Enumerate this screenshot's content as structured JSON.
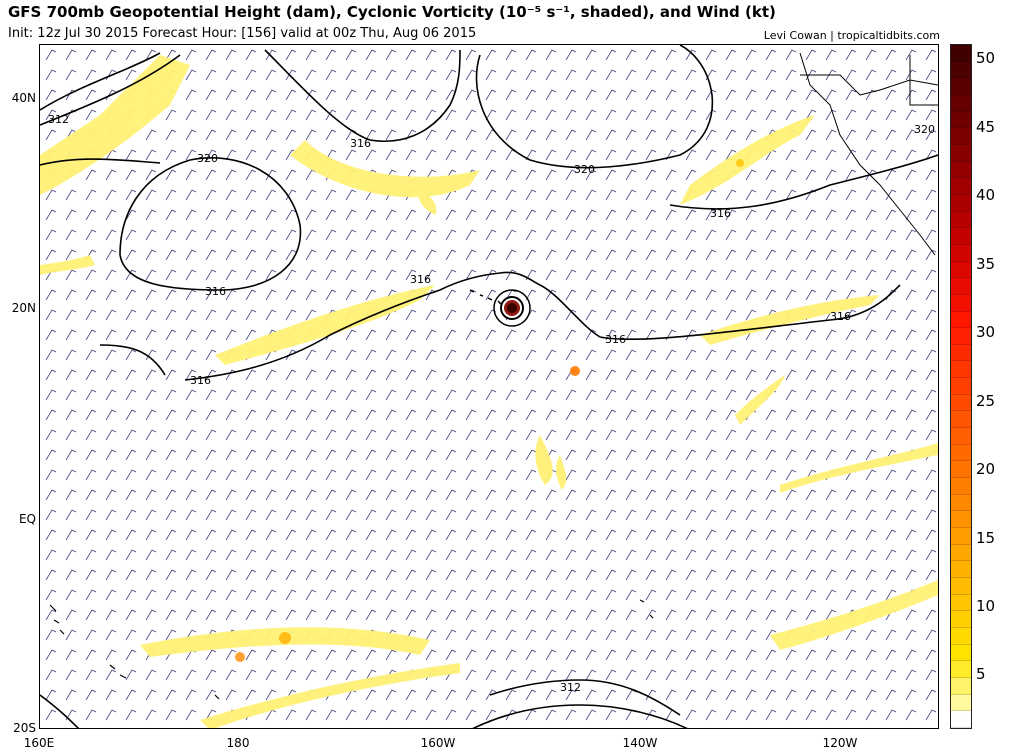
{
  "header": {
    "title": "GFS 700mb Geopotential Height (dam), Cyclonic Vorticity (10⁻⁵ s⁻¹, shaded), and Wind (kt)",
    "subtitle": "Init: 12z Jul 30 2015   Forecast Hour: [156]   valid at 00z Thu, Aug 06 2015",
    "credit": "Levi Cowan | tropicaltidbits.com"
  },
  "axes": {
    "y_labels": [
      "40N",
      "20N",
      "EQ",
      "20S"
    ],
    "x_labels": [
      "160E",
      "180",
      "160W",
      "140W",
      "120W"
    ]
  },
  "contour_labels": [
    "312",
    "316",
    "320",
    "316",
    "320",
    "316",
    "316",
    "316",
    "316",
    "316",
    "312",
    "320"
  ],
  "colorbar": {
    "labels": [
      "50",
      "45",
      "40",
      "35",
      "30",
      "25",
      "20",
      "15",
      "10",
      "5"
    ],
    "colors": [
      "#fefefe",
      "#fffaa0",
      "#fff36a",
      "#ffeb2a",
      "#ffe300",
      "#ffd900",
      "#ffcf00",
      "#ffc500",
      "#ffbb00",
      "#ffb100",
      "#ffa700",
      "#ff9c00",
      "#ff9200",
      "#ff8800",
      "#ff7e00",
      "#ff7300",
      "#ff6900",
      "#ff5f00",
      "#ff5500",
      "#ff4a00",
      "#ff4000",
      "#ff3600",
      "#ff2b00",
      "#ff2100",
      "#ff1700",
      "#f41000",
      "#e80c00",
      "#dc0800",
      "#d00400",
      "#c40000",
      "#b80000",
      "#ac0000",
      "#a00000",
      "#940000",
      "#880000",
      "#7c0000",
      "#700000",
      "#640000",
      "#580000",
      "#4c0000",
      "#400000"
    ],
    "min": 0,
    "max": 52
  },
  "features": {
    "vortex": "vortex-center"
  }
}
